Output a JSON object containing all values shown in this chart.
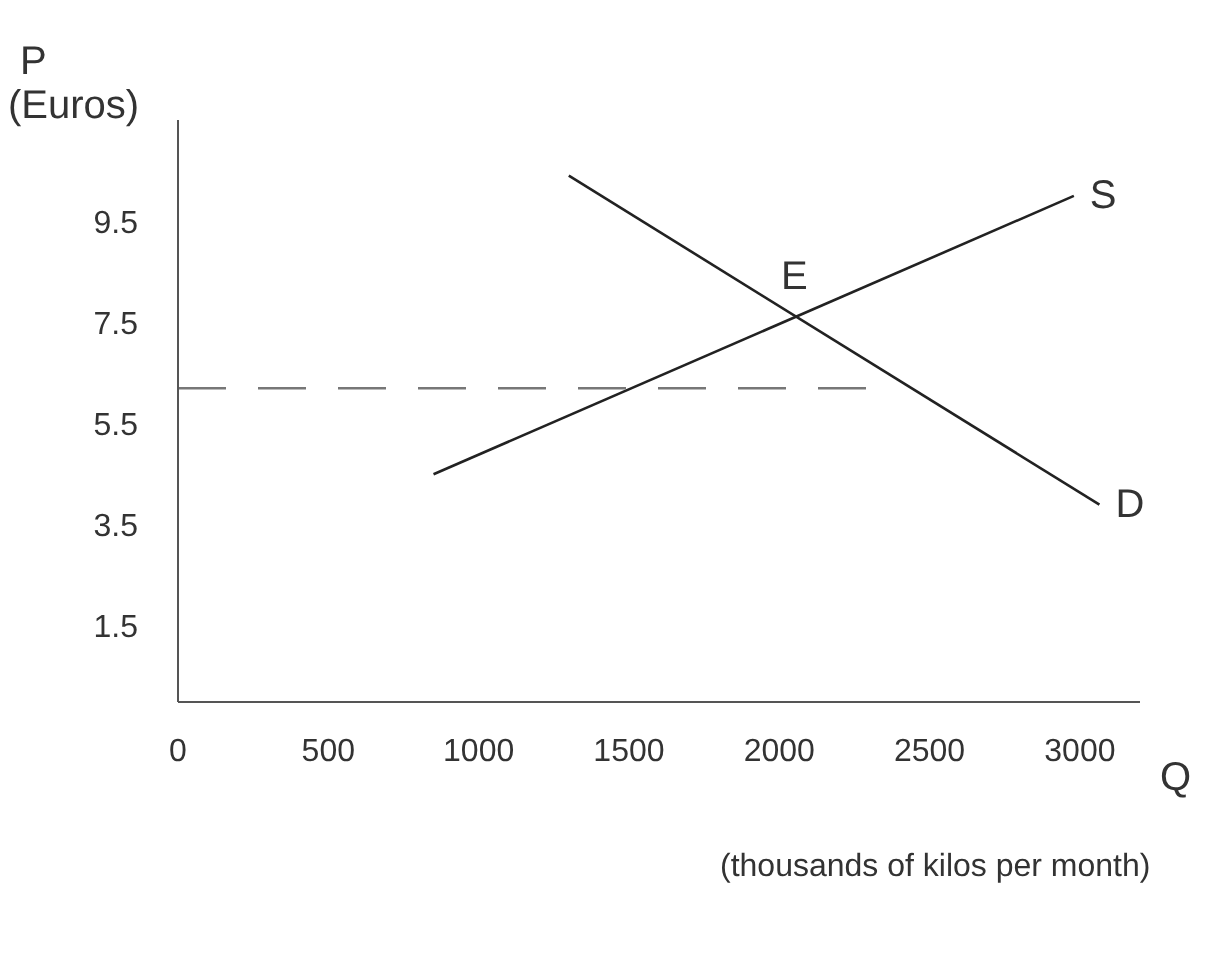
{
  "chart_data": {
    "type": "line",
    "ylabel": "P\n(Euros)",
    "xlabel": "Q",
    "annotations": [
      {
        "text": "E",
        "x": 2050,
        "y": 7.6
      },
      "(thousands of kilos per month)"
    ],
    "series": [
      {
        "name": "S",
        "color": "#222222",
        "x": [
          850,
          2980
        ],
        "values": [
          4.5,
          10.0
        ]
      },
      {
        "name": "D",
        "color": "#222222",
        "x": [
          1300,
          3065
        ],
        "values": [
          10.4,
          3.9
        ]
      },
      {
        "color": "#777777",
        "x": [
          0,
          2390
        ],
        "values": [
          6.2,
          6.2
        ],
        "line_style": "dashed"
      }
    ],
    "xlim": [
      0,
      3200
    ],
    "xticks": [
      0,
      500,
      1000,
      1500,
      2000,
      2500,
      3000
    ],
    "ylim": [
      0,
      11.5
    ],
    "yticks": [
      1.5,
      3.5,
      5.5,
      7.5,
      9.5
    ],
    "grid": false,
    "legend": false,
    "marker": "none"
  }
}
